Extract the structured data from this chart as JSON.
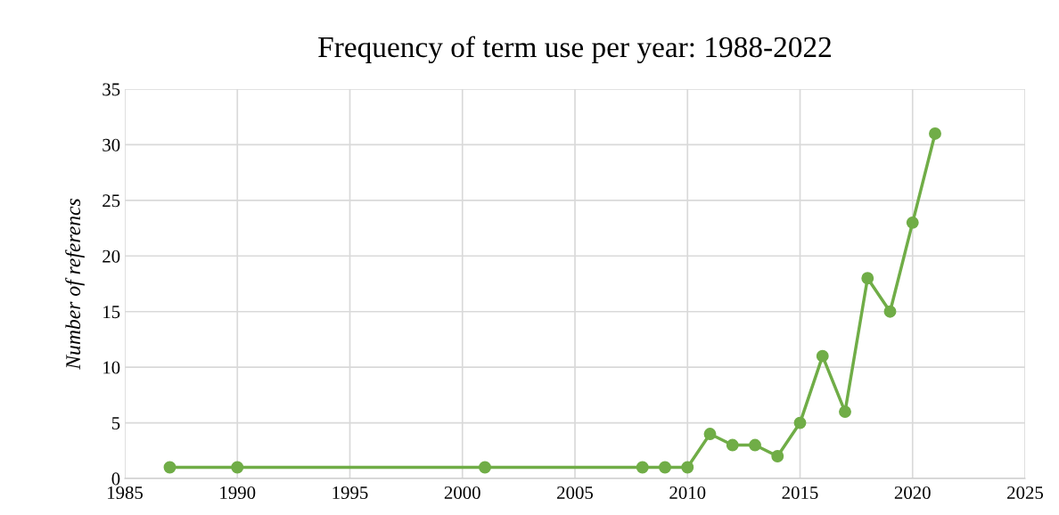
{
  "chart_data": {
    "type": "line",
    "title": "Frequency of term use per year: 1988-2022",
    "ylabel": "Number of referencs",
    "x": [
      1987,
      1990,
      2001,
      2008,
      2009,
      2010,
      2011,
      2012,
      2013,
      2014,
      2015,
      2016,
      2017,
      2018,
      2019,
      2020,
      2021
    ],
    "series": [
      {
        "color": "#70ad47",
        "values": [
          1,
          1,
          1,
          1,
          1,
          1,
          4,
          3,
          3,
          2,
          5,
          11,
          6,
          18,
          15,
          23,
          31
        ]
      }
    ],
    "xlim": [
      1985,
      2025
    ],
    "xticks": [
      1985,
      1990,
      1995,
      2000,
      2005,
      2010,
      2015,
      2020,
      2025
    ],
    "ylim": [
      0,
      35
    ],
    "yticks": [
      0,
      5,
      10,
      15,
      20,
      25,
      30,
      35
    ],
    "grid": true,
    "marker": "circle",
    "line_style": "solid"
  }
}
